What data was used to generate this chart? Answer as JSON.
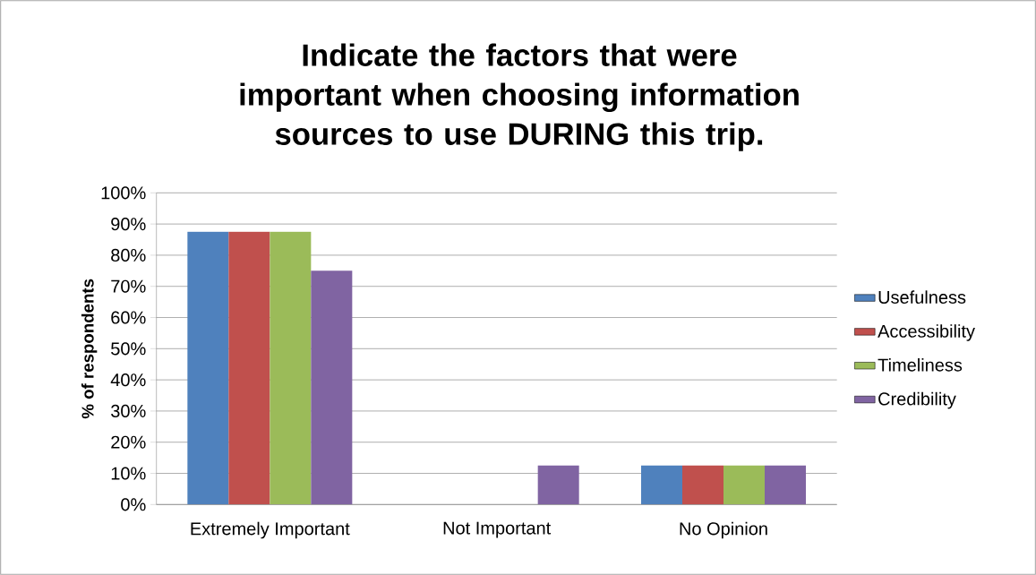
{
  "chart_data": {
    "type": "bar",
    "title": "Indicate the factors that were important when choosing information sources to use DURING this trip.",
    "ylabel": "% of respondents",
    "categories": [
      "Extremely Important",
      "Not Important",
      "No Opinion"
    ],
    "series": [
      {
        "name": "Usefulness",
        "color": "#4f81bd",
        "values": [
          87.5,
          0,
          12.5
        ]
      },
      {
        "name": "Accessibility",
        "color": "#c0504d",
        "values": [
          87.5,
          0,
          12.5
        ]
      },
      {
        "name": "Timeliness",
        "color": "#9bbb59",
        "values": [
          87.5,
          0,
          12.5
        ]
      },
      {
        "name": "Credibility",
        "color": "#8064a2",
        "values": [
          75,
          12.5,
          12.5
        ]
      }
    ],
    "ylim": [
      0,
      100
    ],
    "yticks": [
      {
        "value": 0,
        "label": "0%"
      },
      {
        "value": 10,
        "label": "10%"
      },
      {
        "value": 20,
        "label": "20%"
      },
      {
        "value": 30,
        "label": "30%"
      },
      {
        "value": 40,
        "label": "40%"
      },
      {
        "value": 50,
        "label": "50%"
      },
      {
        "value": 60,
        "label": "60%"
      },
      {
        "value": 70,
        "label": "70%"
      },
      {
        "value": 80,
        "label": "80%"
      },
      {
        "value": 90,
        "label": "90%"
      },
      {
        "value": 100,
        "label": "100%"
      }
    ],
    "grid": "y",
    "legend": "right"
  }
}
